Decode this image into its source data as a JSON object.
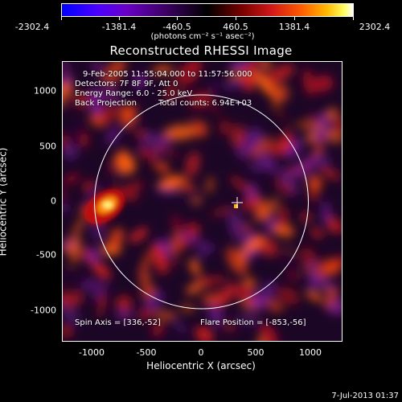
{
  "colorbar": {
    "ticks": [
      "-2302.4",
      "-1381.4",
      "-460.5",
      "460.5",
      "1381.4",
      "2302.4"
    ],
    "unit_label": "(photons cm⁻² s⁻¹ asec⁻²)"
  },
  "title": "Reconstructed RHESSI Image",
  "info": {
    "time_range": "9-Feb-2005 11:55:04.000 to 11:57:56.000",
    "detectors": "Detectors: 7F 8F 9F, Att 0",
    "energy": "Energy Range: 6.0 - 25.0 keV",
    "method": "Back Projection",
    "counts": "Total counts: 6.94E+03",
    "spin_axis": "Spin Axis = [336,-52]",
    "flare_position": "Flare Position = [-853,-56]"
  },
  "y_axis": {
    "label": "Heliocentric Y (arcsec)",
    "ticks": [
      "1000",
      "500",
      "0",
      "-500",
      "-1000"
    ]
  },
  "x_axis": {
    "label": "Heliocentric X (arcsec)",
    "ticks": [
      "-1000",
      "-500",
      "0",
      "500",
      "1000"
    ]
  },
  "timestamp": "7-Jul-2013 01:37",
  "colors": {
    "limb": "#ffffff",
    "marker": "#ffffff",
    "hotspot": "#ffff80"
  }
}
